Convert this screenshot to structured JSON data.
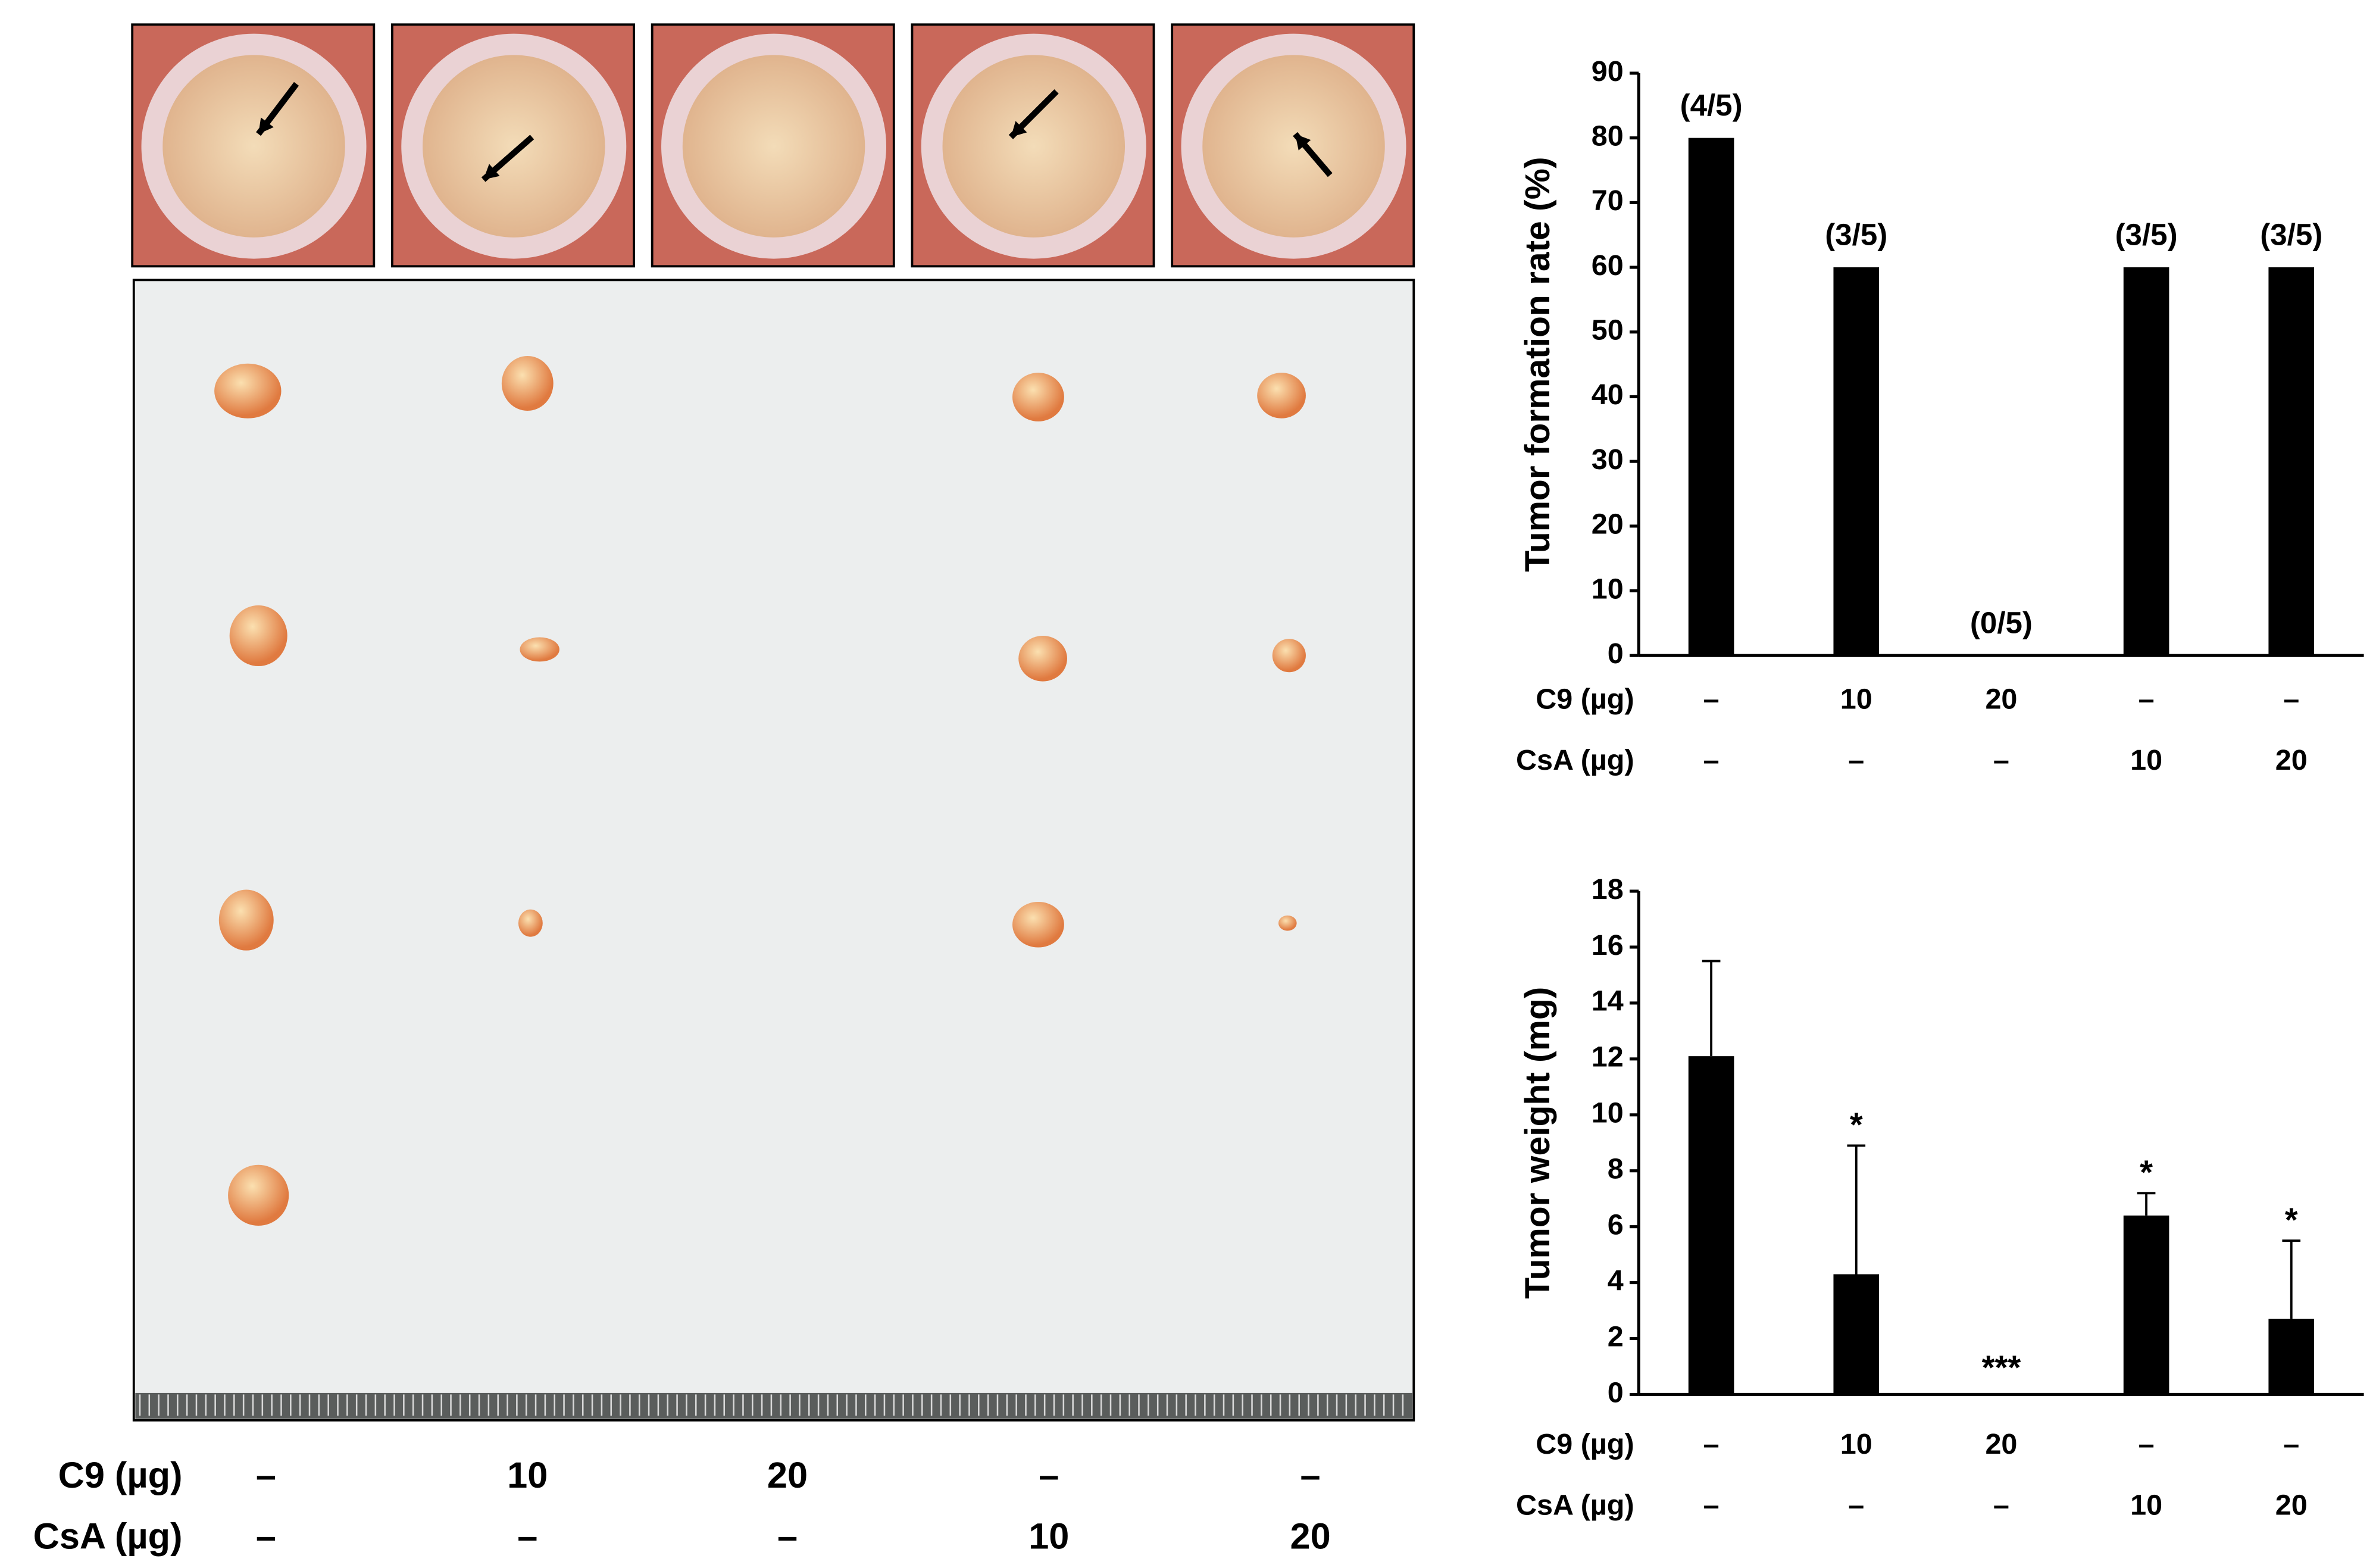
{
  "photo_panel": {
    "rows": [
      {
        "label": "C9 (µg)",
        "values": [
          "–",
          "10",
          "20",
          "–",
          "–"
        ]
      },
      {
        "label": "CsA (µg)",
        "values": [
          "–",
          "–",
          "–",
          "10",
          "20"
        ]
      }
    ]
  },
  "chart_data": [
    {
      "type": "bar",
      "ylabel": "Tumor formation rate (%)",
      "category_rows": [
        {
          "label": "C9 (µg)",
          "values": [
            "–",
            "10",
            "20",
            "–",
            "–"
          ]
        },
        {
          "label": "CsA (µg)",
          "values": [
            "–",
            "–",
            "–",
            "10",
            "20"
          ]
        }
      ],
      "values": [
        80,
        60,
        0,
        60,
        60
      ],
      "value_labels": [
        "(4/5)",
        "(3/5)",
        "(0/5)",
        "(3/5)",
        "(3/5)"
      ],
      "color": "#000000",
      "ylim": [
        0,
        90
      ],
      "yticks": [
        0,
        10,
        20,
        30,
        40,
        50,
        60,
        70,
        80,
        90
      ]
    },
    {
      "type": "bar",
      "ylabel": "Tumor weight (mg)",
      "category_rows": [
        {
          "label": "C9 (µg)",
          "values": [
            "–",
            "10",
            "20",
            "–",
            "–"
          ]
        },
        {
          "label": "CsA (µg)",
          "values": [
            "–",
            "–",
            "–",
            "10",
            "20"
          ]
        }
      ],
      "values": [
        12.1,
        4.3,
        0,
        6.4,
        2.7
      ],
      "errors": [
        3.4,
        4.6,
        0,
        0.8,
        2.8
      ],
      "annotations": [
        "",
        "*",
        "***",
        "*",
        "*"
      ],
      "color": "#000000",
      "ylim": [
        0,
        18
      ],
      "yticks": [
        0,
        2,
        4,
        6,
        8,
        10,
        12,
        14,
        16,
        18
      ]
    }
  ]
}
